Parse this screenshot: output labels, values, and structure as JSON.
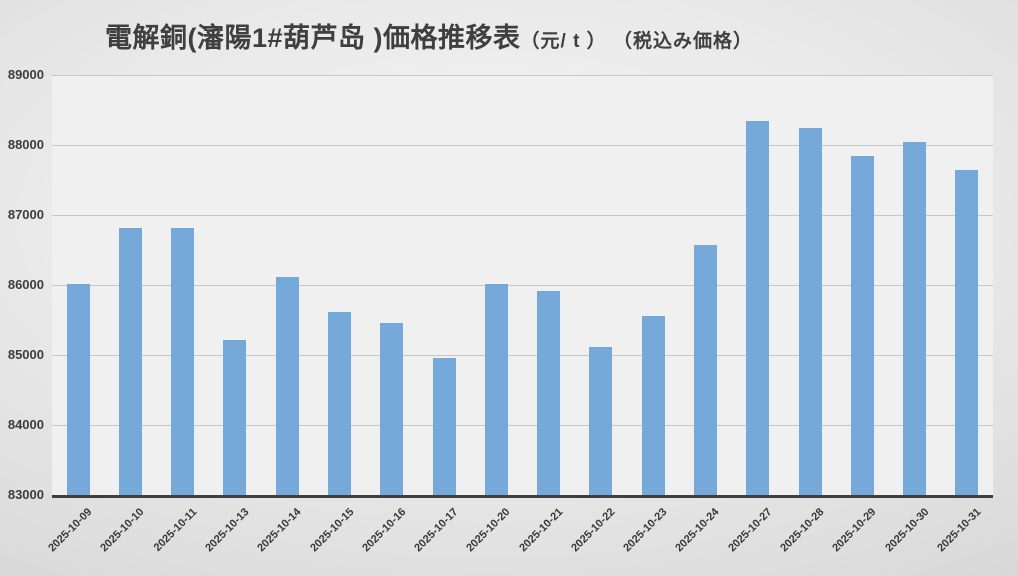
{
  "title": {
    "main": "電解銅(瀋陽1#葫芦岛 )価格推移表",
    "sub": "（元/ t ） （税込み価格）"
  },
  "chart_data": {
    "type": "bar",
    "title": "電解銅(瀋陽1#葫芦岛 )価格推移表（元/ t ）（税込み価格）",
    "categories": [
      "2025-10-09",
      "2025-10-10",
      "2025-10-11",
      "2025-10-13",
      "2025-10-14",
      "2025-10-15",
      "2025-10-16",
      "2025-10-17",
      "2025-10-20",
      "2025-10-21",
      "2025-10-22",
      "2025-10-23",
      "2025-10-24",
      "2025-10-27",
      "2025-10-28",
      "2025-10-29",
      "2025-10-30",
      "2025-10-31"
    ],
    "values": [
      86020,
      86820,
      86820,
      85210,
      86110,
      85610,
      85460,
      84960,
      86020,
      85910,
      85110,
      85560,
      86570,
      88350,
      88250,
      87850,
      88050,
      87650
    ],
    "xlabel": "",
    "ylabel": "",
    "ylim": [
      83000,
      89000
    ],
    "ytick_interval": 1000,
    "grid": true,
    "legend": "none",
    "bar_color": "#74a9d9",
    "plot_bg": "#f0f0f0",
    "gridline_color": "#c7c7c7",
    "axis_line_color": "#3f3f3f",
    "label_color": "#3d3d3d"
  }
}
